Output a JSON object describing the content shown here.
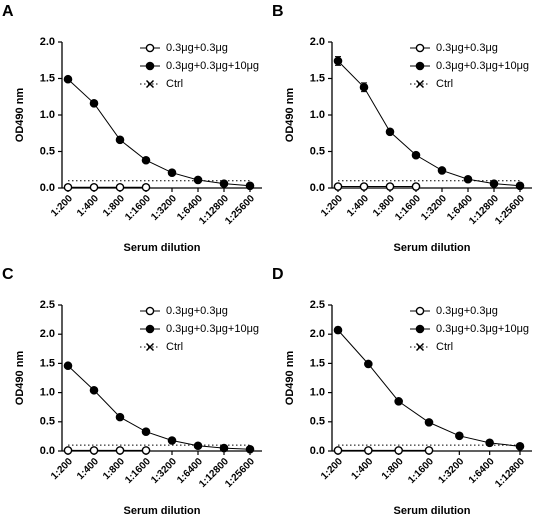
{
  "chart_data": [
    {
      "type": "line",
      "panel": "A",
      "ylabel": "OD490 nm",
      "xlabel": "Serum dilution",
      "categories": [
        "1:200",
        "1:400",
        "1:800",
        "1:1600",
        "1:3200",
        "1:6400",
        "1:12800",
        "1:25600"
      ],
      "ylim": [
        0,
        2
      ],
      "yticks": [
        {
          "value": 0,
          "label": "0.0"
        },
        {
          "value": 0.5,
          "label": "0.5"
        },
        {
          "value": 1,
          "label": "1.0"
        },
        {
          "value": 1.5,
          "label": "1.5"
        },
        {
          "value": 2,
          "label": "2.0"
        }
      ],
      "series": [
        {
          "name": "0.3μg+0.3μg",
          "color": "#000000",
          "marker": "circle-open",
          "values": [
            0.01,
            0.01,
            0.01,
            0.01,
            null,
            null,
            null,
            null
          ]
        },
        {
          "name": "0.3μg+0.3μg+10μg",
          "color": "#000000",
          "marker": "circle-filled",
          "values": [
            1.49,
            1.16,
            0.66,
            0.38,
            0.21,
            0.11,
            0.06,
            0.03
          ]
        },
        {
          "name": "Ctrl",
          "color": "#000000",
          "marker": "x",
          "linestyle": "dotted",
          "values": [
            0.1,
            0.1,
            0.1,
            0.1,
            0.1,
            0.1,
            0.1,
            0.1
          ]
        }
      ]
    },
    {
      "type": "line",
      "panel": "B",
      "ylabel": "OD490 nm",
      "xlabel": "Serum dilution",
      "categories": [
        "1:200",
        "1:400",
        "1:800",
        "1:1600",
        "1:3200",
        "1:6400",
        "1:12800",
        "1:25600"
      ],
      "ylim": [
        0,
        2
      ],
      "yticks": [
        {
          "value": 0,
          "label": "0.0"
        },
        {
          "value": 0.5,
          "label": "0.5"
        },
        {
          "value": 1,
          "label": "1.0"
        },
        {
          "value": 1.5,
          "label": "1.5"
        },
        {
          "value": 2,
          "label": "2.0"
        }
      ],
      "series": [
        {
          "name": "0.3μg+0.3μg",
          "color": "#000000",
          "marker": "circle-open",
          "values": [
            0.02,
            0.02,
            0.02,
            0.02,
            null,
            null,
            null,
            null
          ]
        },
        {
          "name": "0.3μg+0.3μg+10μg",
          "color": "#000000",
          "marker": "circle-filled",
          "values": [
            1.74,
            1.38,
            0.77,
            0.45,
            0.24,
            0.12,
            0.06,
            0.03
          ],
          "errors": [
            0.06,
            0.06,
            0.02,
            0.02,
            0.02,
            0.01,
            0.01,
            0.01
          ]
        },
        {
          "name": "Ctrl",
          "color": "#000000",
          "marker": "x",
          "linestyle": "dotted",
          "values": [
            0.1,
            0.1,
            0.1,
            0.1,
            0.1,
            0.1,
            0.1,
            0.1
          ]
        }
      ]
    },
    {
      "type": "line",
      "panel": "C",
      "ylabel": "OD490 nm",
      "xlabel": "Serum dilution",
      "categories": [
        "1:200",
        "1:400",
        "1:800",
        "1:1600",
        "1:3200",
        "1:6400",
        "1:12800",
        "1:25600"
      ],
      "ylim": [
        0,
        2.5
      ],
      "yticks": [
        {
          "value": 0,
          "label": "0.0"
        },
        {
          "value": 0.5,
          "label": "0.5"
        },
        {
          "value": 1,
          "label": "1.0"
        },
        {
          "value": 1.5,
          "label": "1.5"
        },
        {
          "value": 2,
          "label": "2.0"
        },
        {
          "value": 2.5,
          "label": "2.5"
        }
      ],
      "series": [
        {
          "name": "0.3μg+0.3μg",
          "color": "#000000",
          "marker": "circle-open",
          "values": [
            0.01,
            0.01,
            0.01,
            0.01,
            null,
            null,
            null,
            null
          ]
        },
        {
          "name": "0.3μg+0.3μg+10μg",
          "color": "#000000",
          "marker": "circle-filled",
          "values": [
            1.46,
            1.04,
            0.58,
            0.33,
            0.18,
            0.09,
            0.05,
            0.03
          ]
        },
        {
          "name": "Ctrl",
          "color": "#000000",
          "marker": "x",
          "linestyle": "dotted",
          "values": [
            0.1,
            0.1,
            0.1,
            0.1,
            0.1,
            0.1,
            0.1,
            0.1
          ]
        }
      ]
    },
    {
      "type": "line",
      "panel": "D",
      "ylabel": "OD490 nm",
      "xlabel": "Serum dilution",
      "categories": [
        "1:200",
        "1:400",
        "1:800",
        "1:1600",
        "1:3200",
        "1:6400",
        "1:12800"
      ],
      "ylim": [
        0,
        2.5
      ],
      "yticks": [
        {
          "value": 0,
          "label": "0.0"
        },
        {
          "value": 0.5,
          "label": "0.5"
        },
        {
          "value": 1,
          "label": "1.0"
        },
        {
          "value": 1.5,
          "label": "1.5"
        },
        {
          "value": 2,
          "label": "2.0"
        },
        {
          "value": 2.5,
          "label": "2.5"
        }
      ],
      "series": [
        {
          "name": "0.3μg+0.3μg",
          "color": "#000000",
          "marker": "circle-open",
          "values": [
            0.01,
            0.01,
            0.01,
            0.01,
            null,
            null,
            null
          ]
        },
        {
          "name": "0.3μg+0.3μg+10μg",
          "color": "#000000",
          "marker": "circle-filled",
          "values": [
            2.07,
            1.49,
            0.85,
            0.49,
            0.26,
            0.14,
            0.08
          ],
          "errors": [
            0.05,
            0.02,
            0.02,
            0.02,
            0.01,
            0.01,
            0.01
          ]
        },
        {
          "name": "Ctrl",
          "color": "#000000",
          "marker": "x",
          "linestyle": "dotted",
          "values": [
            0.1,
            0.1,
            0.1,
            0.1,
            0.1,
            0.1,
            0.1
          ]
        }
      ]
    }
  ]
}
